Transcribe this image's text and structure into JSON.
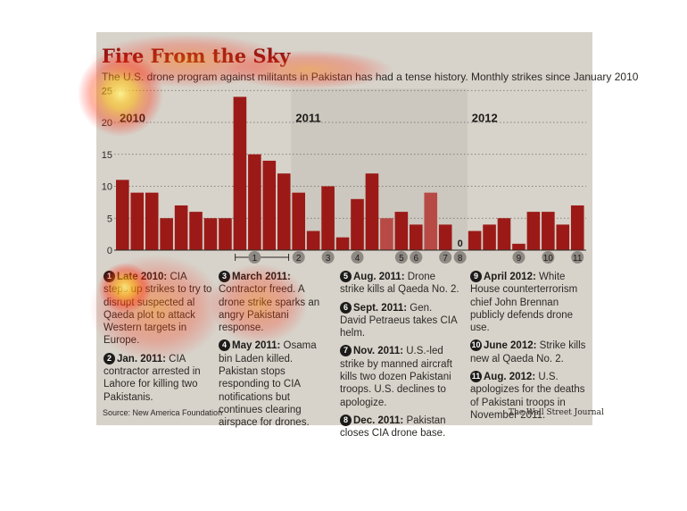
{
  "title": "Fire From the Sky",
  "subtitle": "The U.S. drone program against militants in Pakistan has had a tense history. Monthly strikes since January 2010",
  "source": "Source: New America Foundation",
  "credit": "The Wall Street Journal",
  "colors": {
    "bar": "#9b1a17",
    "bar_light": "#b84a45",
    "panel": "#d7d3ca",
    "marker": "#8e8a83",
    "title": "#8b1a14"
  },
  "chart_data": {
    "type": "bar",
    "title": "Fire From the Sky",
    "ylim": [
      0,
      25
    ],
    "yticks": [
      0,
      5,
      10,
      15,
      20,
      25
    ],
    "year_labels": [
      {
        "label": "2010",
        "start_index": 0
      },
      {
        "label": "2011",
        "start_index": 12
      },
      {
        "label": "2012",
        "start_index": 24
      }
    ],
    "values": [
      11,
      9,
      9,
      5,
      7,
      6,
      5,
      5,
      24,
      15,
      14,
      12,
      9,
      3,
      10,
      2,
      8,
      12,
      5,
      6,
      4,
      9,
      4,
      0,
      3,
      4,
      5,
      1,
      6,
      6,
      4,
      7
    ],
    "zero_label": "0",
    "markers": [
      {
        "num": "1",
        "index": 9
      },
      {
        "num": "2",
        "index": 12
      },
      {
        "num": "3",
        "index": 14
      },
      {
        "num": "4",
        "index": 16
      },
      {
        "num": "5",
        "index": 19
      },
      {
        "num": "6",
        "index": 20
      },
      {
        "num": "7",
        "index": 22
      },
      {
        "num": "8",
        "index": 23
      },
      {
        "num": "9",
        "index": 27
      },
      {
        "num": "10",
        "index": 29
      },
      {
        "num": "11",
        "index": 31
      }
    ],
    "grid": true
  },
  "notes": [
    {
      "num": "1",
      "date": "Late 2010:",
      "text": " CIA steps up strikes to try to disrupt suspected al Qaeda plot to attack Western targets in Europe."
    },
    {
      "num": "2",
      "date": "Jan. 2011:",
      "text": " CIA contractor arrested in Lahore for killing two Pakistanis."
    },
    {
      "num": "3",
      "date": "March 2011:",
      "text": " Contractor freed. A drone strike sparks an angry Pakistani response."
    },
    {
      "num": "4",
      "date": "May 2011:",
      "text": " Osama bin Laden killed. Pakistan stops responding to CIA notifications but continues clearing airspace for drones."
    },
    {
      "num": "5",
      "date": "Aug. 2011:",
      "text": " Drone strike kills al Qaeda No. 2."
    },
    {
      "num": "6",
      "date": "Sept. 2011:",
      "text": " Gen. David Petraeus takes CIA helm."
    },
    {
      "num": "7",
      "date": "Nov. 2011:",
      "text": " U.S.-led strike by manned aircraft kills two dozen Pakistani troops. U.S. declines to apologize."
    },
    {
      "num": "8",
      "date": "Dec. 2011:",
      "text": " Pakistan closes CIA drone base."
    },
    {
      "num": "9",
      "date": "April 2012:",
      "text": " White House counterterrorism chief John Brennan publicly defends drone use."
    },
    {
      "num": "10",
      "date": "June 2012:",
      "text": " Strike kills new al Qaeda No. 2."
    },
    {
      "num": "11",
      "date": "Aug. 2012:",
      "text": " U.S. apologizes for the deaths of Pakistani troops in November 2011."
    }
  ]
}
